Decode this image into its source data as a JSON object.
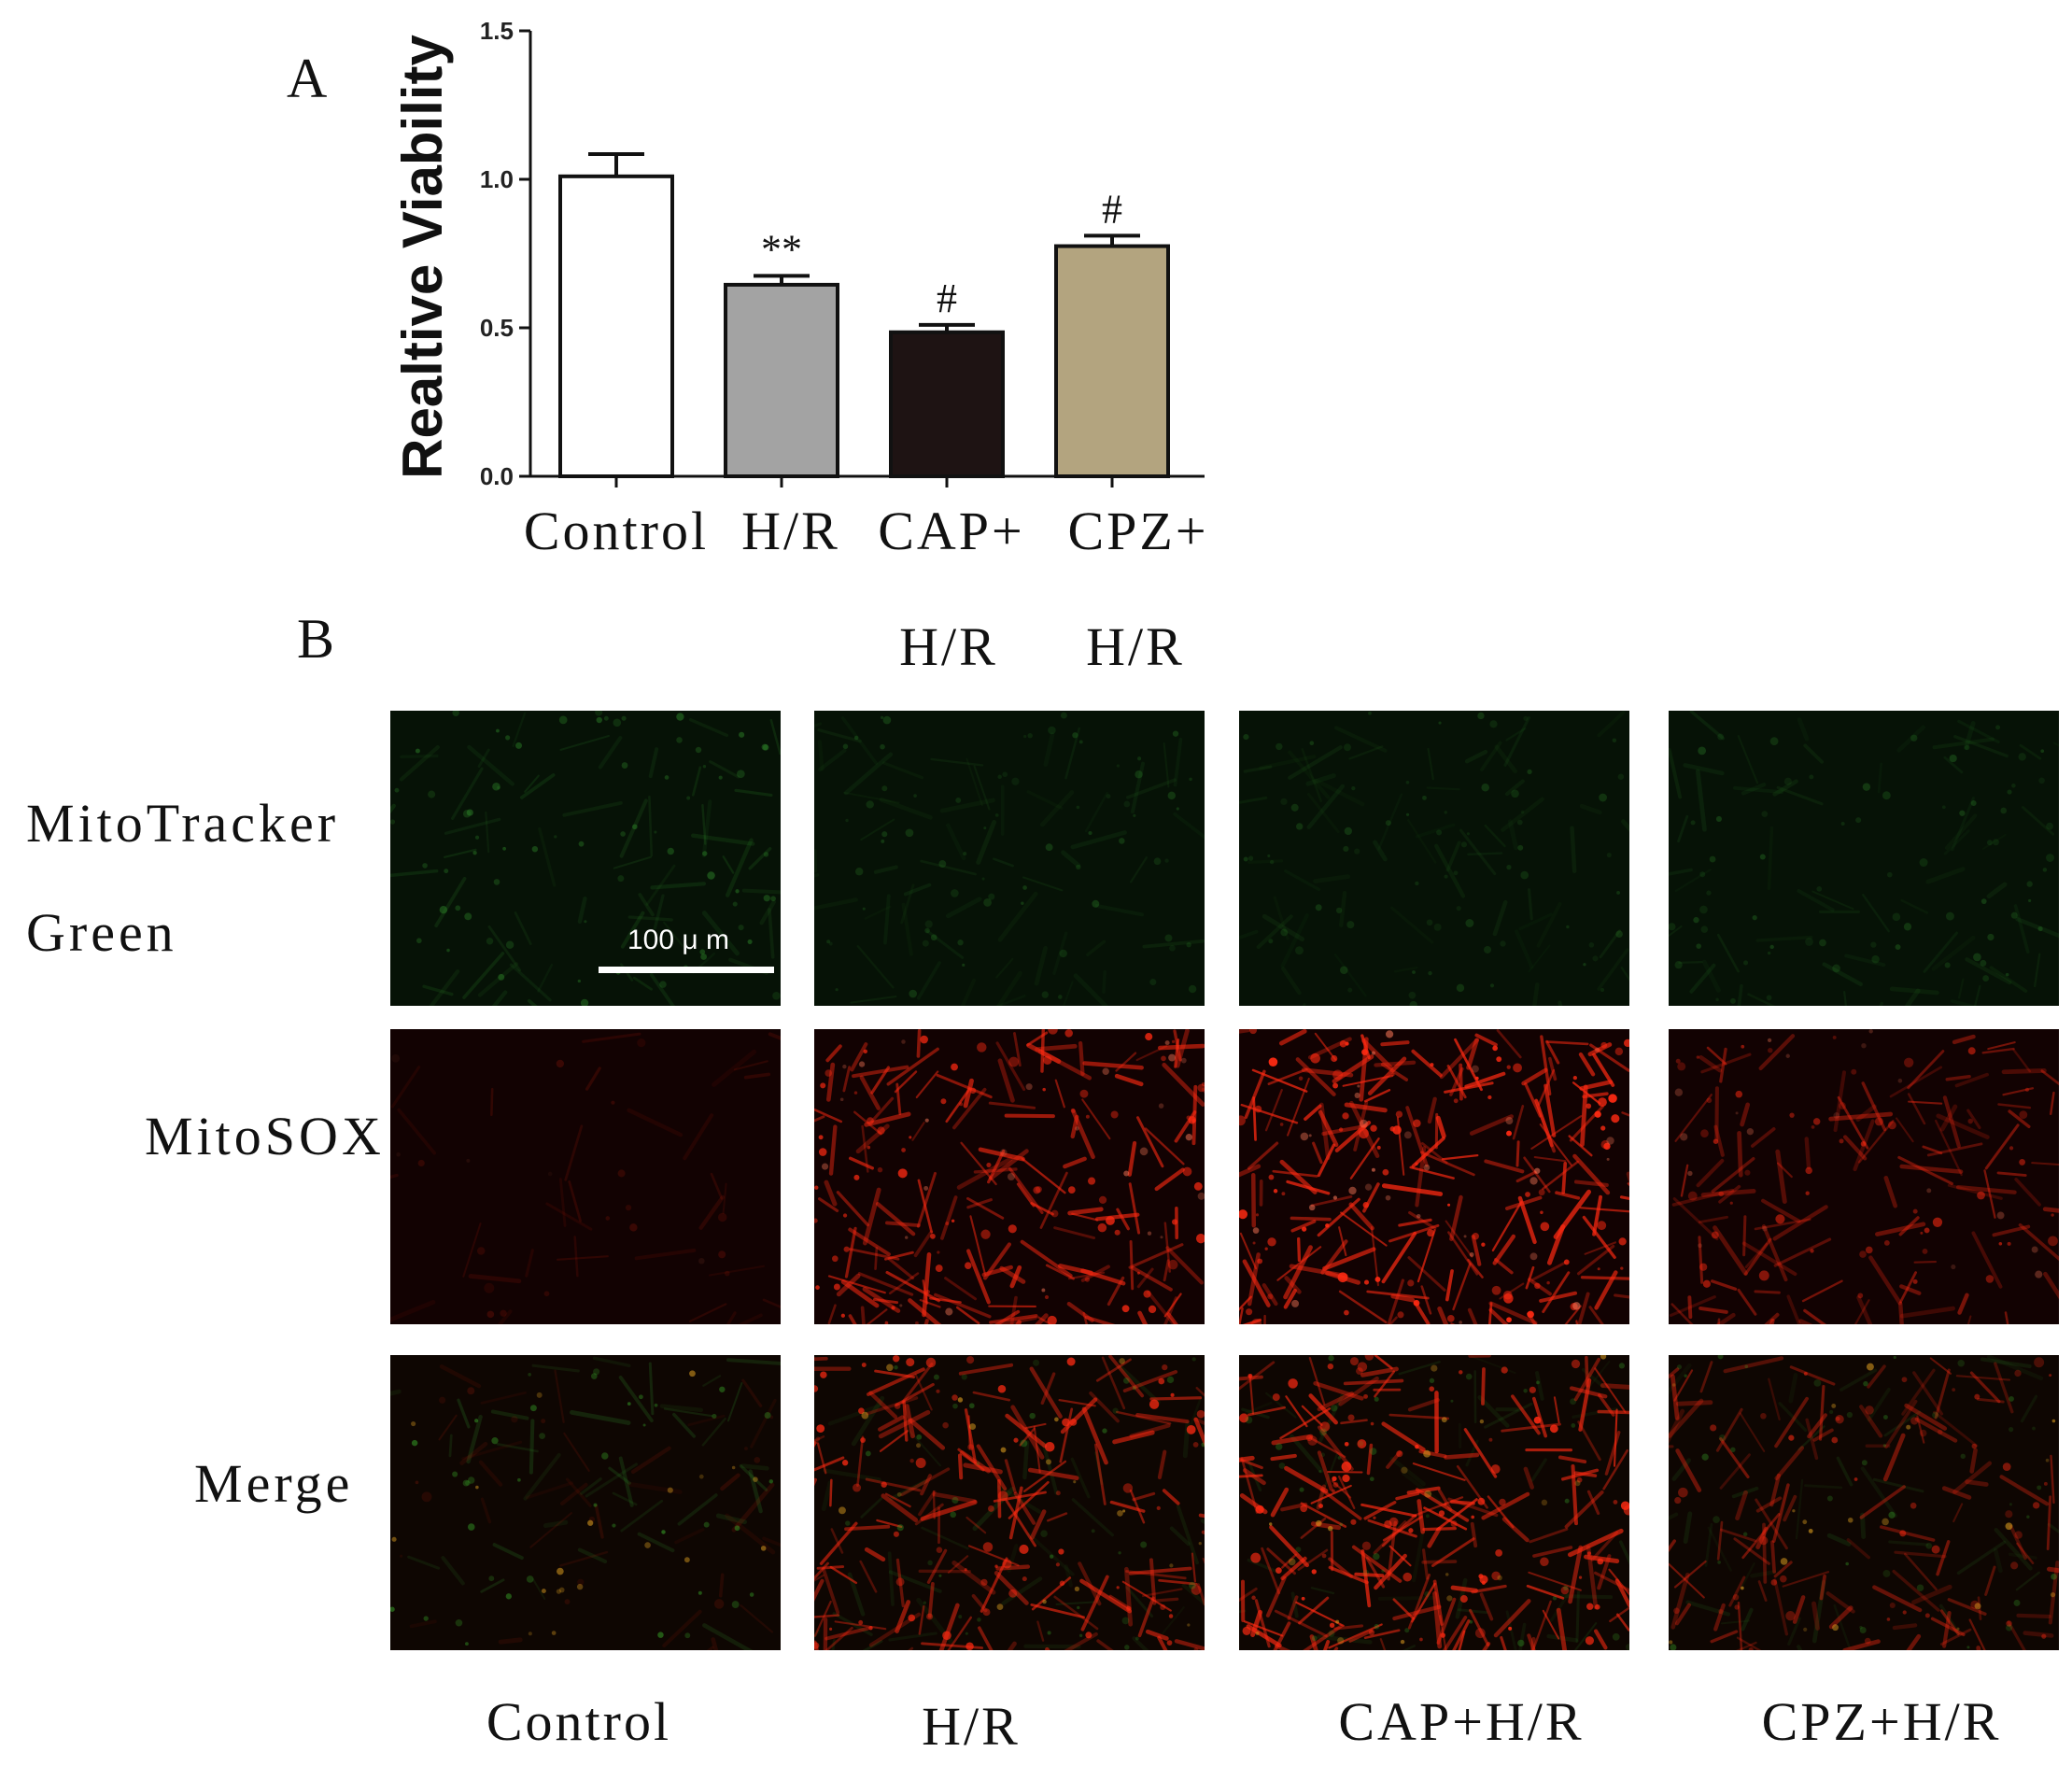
{
  "panel_a_label": "A",
  "panel_b_label": "B",
  "chart_data": {
    "type": "bar",
    "ylabel": "Realtive Viability",
    "ylim": [
      0,
      1.5
    ],
    "yticks": [
      "0.0",
      "0.5",
      "1.0",
      "1.5"
    ],
    "categories": [
      {
        "line1": "Control",
        "line2": ""
      },
      {
        "line1": "H/R",
        "line2": ""
      },
      {
        "line1": "CAP+",
        "line2": "H/R"
      },
      {
        "line1": "CPZ+",
        "line2": "H/R"
      }
    ],
    "values": [
      1.01,
      0.645,
      0.485,
      0.775
    ],
    "errors": [
      0.075,
      0.03,
      0.025,
      0.035
    ],
    "annotations": [
      "",
      "**",
      "#",
      "#"
    ],
    "colors": [
      "#ffffff",
      "#a3a3a3",
      "#1e1313",
      "#b3a47f"
    ]
  },
  "micrographs": {
    "row_labels": [
      {
        "line1": "MitoTracker",
        "line2": "Green"
      },
      {
        "line1": "MitoSOX",
        "line2": ""
      },
      {
        "line1": "Merge",
        "line2": ""
      }
    ],
    "column_labels": [
      "Control",
      "H/R",
      "CAP+H/R",
      "CPZ+H/R"
    ],
    "scale_bar_label": "100 μ m",
    "stain_colors": {
      "mitotracker": "#2f8a2a",
      "mitosox": "#ff2a12"
    },
    "red_intensity": [
      0.18,
      0.85,
      1.0,
      0.6
    ],
    "green_intensity": [
      0.8,
      0.55,
      0.5,
      0.55
    ]
  }
}
